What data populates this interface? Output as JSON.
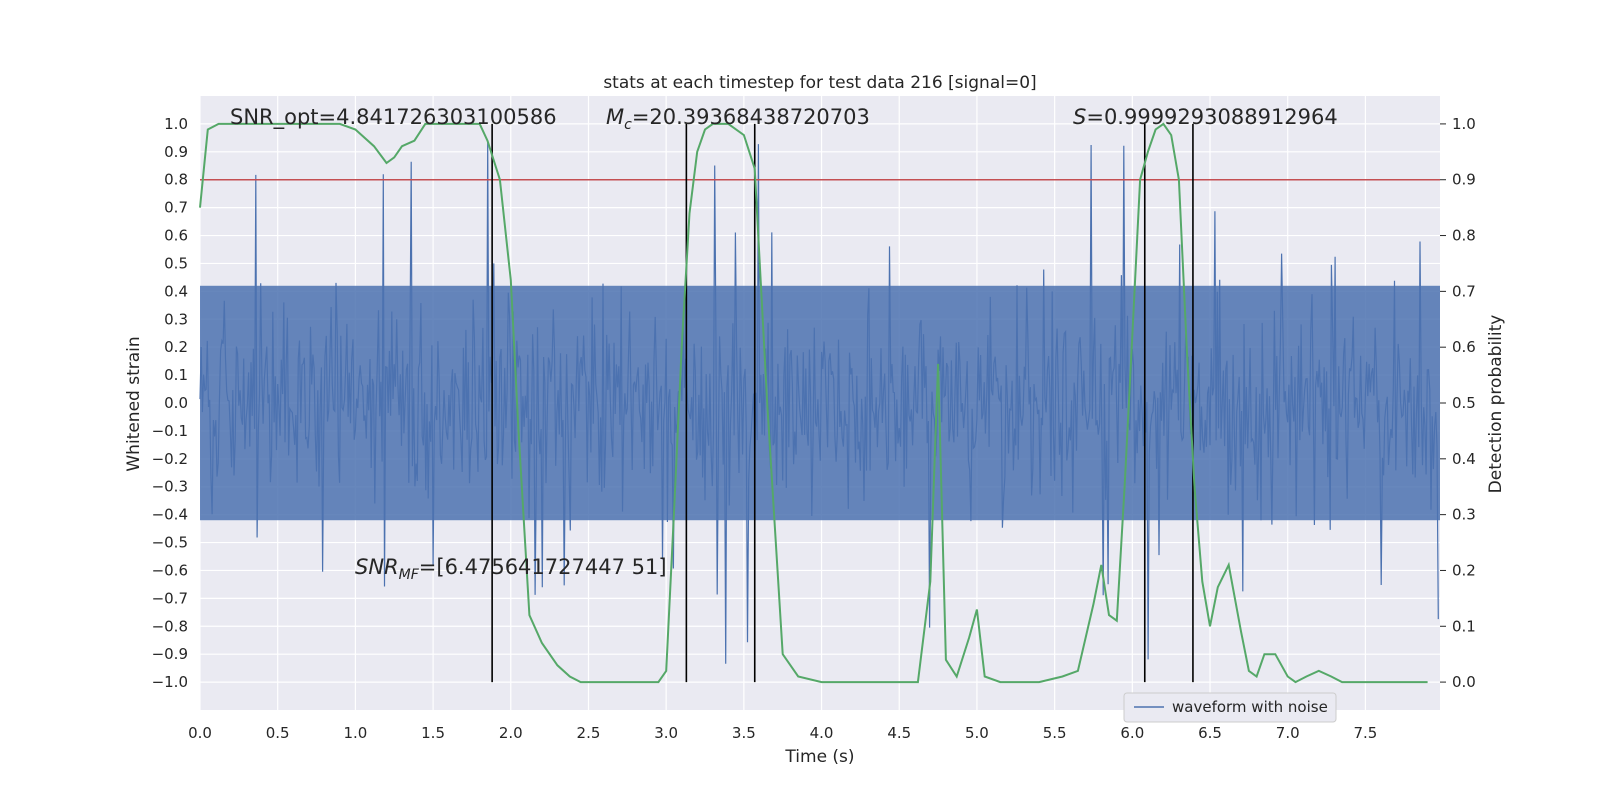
{
  "chart_data": {
    "type": "line",
    "title": "stats at each timestep for test data 216 [signal=0]",
    "xlabel": "Time (s)",
    "ylabel_left": "Whitened strain",
    "ylabel_right": "Detection probability",
    "xlim": [
      0.0,
      7.98
    ],
    "ylim_left": [
      -1.1,
      1.1
    ],
    "ylim_right": [
      -0.05,
      1.05
    ],
    "xticks": [
      0.0,
      0.5,
      1.0,
      1.5,
      2.0,
      2.5,
      3.0,
      3.5,
      4.0,
      4.5,
      5.0,
      5.5,
      6.0,
      6.5,
      7.0,
      7.5
    ],
    "xtick_labels": [
      "0.0",
      "0.5",
      "1.0",
      "1.5",
      "2.0",
      "2.5",
      "3.0",
      "3.5",
      "4.0",
      "4.5",
      "5.0",
      "5.5",
      "6.0",
      "6.5",
      "7.0",
      "7.5"
    ],
    "yticks_left": [
      1.0,
      0.9,
      0.8,
      0.7,
      0.6,
      0.5,
      0.4,
      0.3,
      0.2,
      0.1,
      0.0,
      -0.1,
      -0.2,
      -0.3,
      -0.4,
      -0.5,
      -0.6,
      -0.7,
      -0.8,
      -0.9,
      -1.0
    ],
    "yticks_left_labels": [
      "1.0",
      "0.9",
      "0.8",
      "0.7",
      "0.6",
      "0.5",
      "0.4",
      "0.3",
      "0.2",
      "0.1",
      "0.0",
      "−0.1",
      "−0.2",
      "−0.3",
      "−0.4",
      "−0.5",
      "−0.6",
      "−0.7",
      "−0.8",
      "−0.9",
      "−1.0"
    ],
    "yticks_right": [
      1.0,
      0.9,
      0.8,
      0.7,
      0.6,
      0.5,
      0.4,
      0.3,
      0.2,
      0.1,
      0.0
    ],
    "yticks_right_labels": [
      "1.0",
      "0.9",
      "0.8",
      "0.7",
      "0.6",
      "0.5",
      "0.4",
      "0.3",
      "0.2",
      "0.1",
      "0.0"
    ],
    "threshold": {
      "axis": "right",
      "value": 0.9,
      "color": "#c44e52"
    },
    "vertical_lines": [
      1.88,
      3.13,
      3.57,
      6.08,
      6.39
    ],
    "vertical_line_range": [
      -1.0,
      1.0
    ],
    "annotations": {
      "snr_opt": "SNR_opt=4.841726303100586",
      "mc_symbol": "M",
      "mc_sub": "c",
      "mc_value": "=20.39368438720703",
      "s_symbol": "S",
      "s_value": "=0.9999293088912964",
      "snr_mf_symbol": "SNR",
      "snr_mf_sub": "MF",
      "snr_mf_value": "=[6.475641727447 51]"
    },
    "series": [
      {
        "name": "waveform with noise",
        "axis": "left",
        "color": "#4c72b0",
        "kind": "noise-strain",
        "fs": 128,
        "envelope_max": 0.42,
        "noise_sigma": 0.17,
        "peak_range": [
          -1.0,
          1.0
        ]
      },
      {
        "name": "detection probability",
        "axis": "right",
        "color": "#55a868",
        "x": [
          0.0,
          0.05,
          0.12,
          0.2,
          0.3,
          0.5,
          0.7,
          0.9,
          1.0,
          1.12,
          1.2,
          1.25,
          1.3,
          1.38,
          1.45,
          1.5,
          1.6,
          1.7,
          1.8,
          1.85,
          1.93,
          2.0,
          2.05,
          2.12,
          2.2,
          2.3,
          2.38,
          2.45,
          2.55,
          2.7,
          2.85,
          2.95,
          3.0,
          3.05,
          3.1,
          3.15,
          3.2,
          3.25,
          3.3,
          3.4,
          3.5,
          3.57,
          3.65,
          3.75,
          3.85,
          4.0,
          4.3,
          4.5,
          4.62,
          4.7,
          4.75,
          4.8,
          4.87,
          4.95,
          5.0,
          5.05,
          5.15,
          5.4,
          5.55,
          5.65,
          5.75,
          5.8,
          5.85,
          5.9,
          5.95,
          6.0,
          6.05,
          6.1,
          6.15,
          6.2,
          6.25,
          6.3,
          6.35,
          6.4,
          6.45,
          6.5,
          6.55,
          6.62,
          6.7,
          6.75,
          6.8,
          6.85,
          6.92,
          7.0,
          7.05,
          7.12,
          7.2,
          7.28,
          7.35,
          7.45,
          7.6,
          7.75,
          7.9
        ],
        "y": [
          0.85,
          0.99,
          1.0,
          1.0,
          1.0,
          1.0,
          1.0,
          1.0,
          0.99,
          0.96,
          0.93,
          0.94,
          0.96,
          0.97,
          1.0,
          1.0,
          1.0,
          1.0,
          1.0,
          0.97,
          0.9,
          0.72,
          0.45,
          0.12,
          0.07,
          0.03,
          0.01,
          0.0,
          0.0,
          0.0,
          0.0,
          0.0,
          0.02,
          0.3,
          0.6,
          0.84,
          0.95,
          0.99,
          1.0,
          1.0,
          0.98,
          0.92,
          0.5,
          0.05,
          0.01,
          0.0,
          0.0,
          0.0,
          0.0,
          0.18,
          0.57,
          0.04,
          0.01,
          0.08,
          0.13,
          0.01,
          0.0,
          0.0,
          0.01,
          0.02,
          0.14,
          0.21,
          0.12,
          0.11,
          0.35,
          0.62,
          0.9,
          0.95,
          0.99,
          1.0,
          0.98,
          0.9,
          0.6,
          0.35,
          0.18,
          0.1,
          0.17,
          0.21,
          0.09,
          0.02,
          0.01,
          0.05,
          0.05,
          0.01,
          0.0,
          0.01,
          0.02,
          0.01,
          0.0,
          0.0,
          0.0,
          0.0,
          0.0
        ]
      }
    ],
    "legend": {
      "entries": [
        "waveform with noise"
      ],
      "location": "lower-right"
    }
  }
}
